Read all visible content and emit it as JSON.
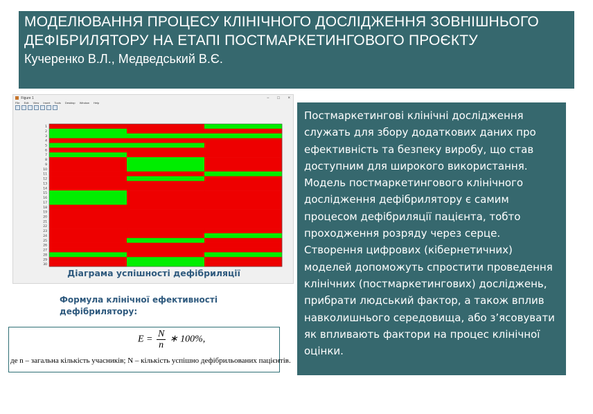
{
  "header": {
    "title": "МОДЕЛЮВАННЯ ПРОЦЕСУ КЛІНІЧНОГО ДОСЛІДЖЕННЯ ЗОВНІШНЬОГО ДЕФІБРИЛЯТОРУ НА ЕТАПІ ПОСТМАРКЕТИНГОВОГО ПРОЄКТУ",
    "authors": "Кучеренко  В.Л., Медведський В.Є."
  },
  "figure_window": {
    "title": "Figure 1",
    "controls": [
      "−",
      "□",
      "×"
    ],
    "menu": [
      "File",
      "Edit",
      "View",
      "Insert",
      "Tools",
      "Desktop",
      "Window",
      "Help"
    ],
    "toolbar_icons": [
      "new-icon",
      "open-icon",
      "save-icon",
      "print-icon",
      "insert-colorbar-icon",
      "insert-legend-icon",
      "datacursor-icon"
    ],
    "caption": "Діаграма успішності дефібриляції"
  },
  "chart_data": {
    "type": "heatmap",
    "title": "",
    "xlabel": "",
    "ylabel": "",
    "x_ticks": [
      "1",
      "2",
      "3"
    ],
    "y_ticks": [
      "1",
      "2",
      "3",
      "4",
      "5",
      "6",
      "7",
      "8",
      "9",
      "10",
      "11",
      "12",
      "13",
      "14",
      "15",
      "16",
      "17",
      "18",
      "19",
      "20",
      "21",
      "22",
      "23",
      "24",
      "25",
      "26",
      "27",
      "28",
      "29",
      "30"
    ],
    "colors": {
      "success": "#00ee00",
      "failure": "#ee0000"
    },
    "matrix": [
      [
        0,
        0,
        1
      ],
      [
        1,
        0,
        0
      ],
      [
        1,
        1,
        1
      ],
      [
        0,
        0,
        0
      ],
      [
        1,
        1,
        0
      ],
      [
        0,
        0,
        0
      ],
      [
        1,
        0,
        0
      ],
      [
        0,
        1,
        0
      ],
      [
        0,
        1,
        0
      ],
      [
        0,
        1,
        0
      ],
      [
        0,
        0,
        1
      ],
      [
        0,
        1,
        0
      ],
      [
        0,
        0,
        0
      ],
      [
        0,
        0,
        0
      ],
      [
        1,
        0,
        0
      ],
      [
        1,
        0,
        0
      ],
      [
        1,
        0,
        0
      ],
      [
        0,
        0,
        0
      ],
      [
        0,
        0,
        0
      ],
      [
        0,
        0,
        0
      ],
      [
        0,
        0,
        0
      ],
      [
        0,
        0,
        0
      ],
      [
        0,
        0,
        0
      ],
      [
        0,
        0,
        1
      ],
      [
        0,
        1,
        0
      ],
      [
        0,
        0,
        0
      ],
      [
        0,
        0,
        0
      ],
      [
        1,
        0,
        1
      ],
      [
        0,
        1,
        0
      ],
      [
        0,
        1,
        0
      ]
    ]
  },
  "formula": {
    "title": "Формула клінічної ефективності дефібрилятору:",
    "lhs": "E =",
    "numerator": "N",
    "denominator": "n",
    "rhs": "∗ 100%,",
    "note": "де n – загальна кількість учасників; N – кількість успішно дефібрильованих пацієнтів."
  },
  "description": "Постмаркетингові клінічні дослідження служать для збору додаткових даних про ефективність та безпеку виробу, що став доступним для широкого використання. Модель постмаркетингового клінічного дослідження дефібрилятору є самим процесом дефібриляції пацієнта, тобто проходження розряду через серце. Створення цифрових (кібернетичних) моделей допоможуть спростити проведення клінічних (постмаркетингових) досліджень, прибрати людський фактор, а також вплив навколишнього середовища, або з’ясовувати як впливають фактори на процес клінічної оцінки."
}
